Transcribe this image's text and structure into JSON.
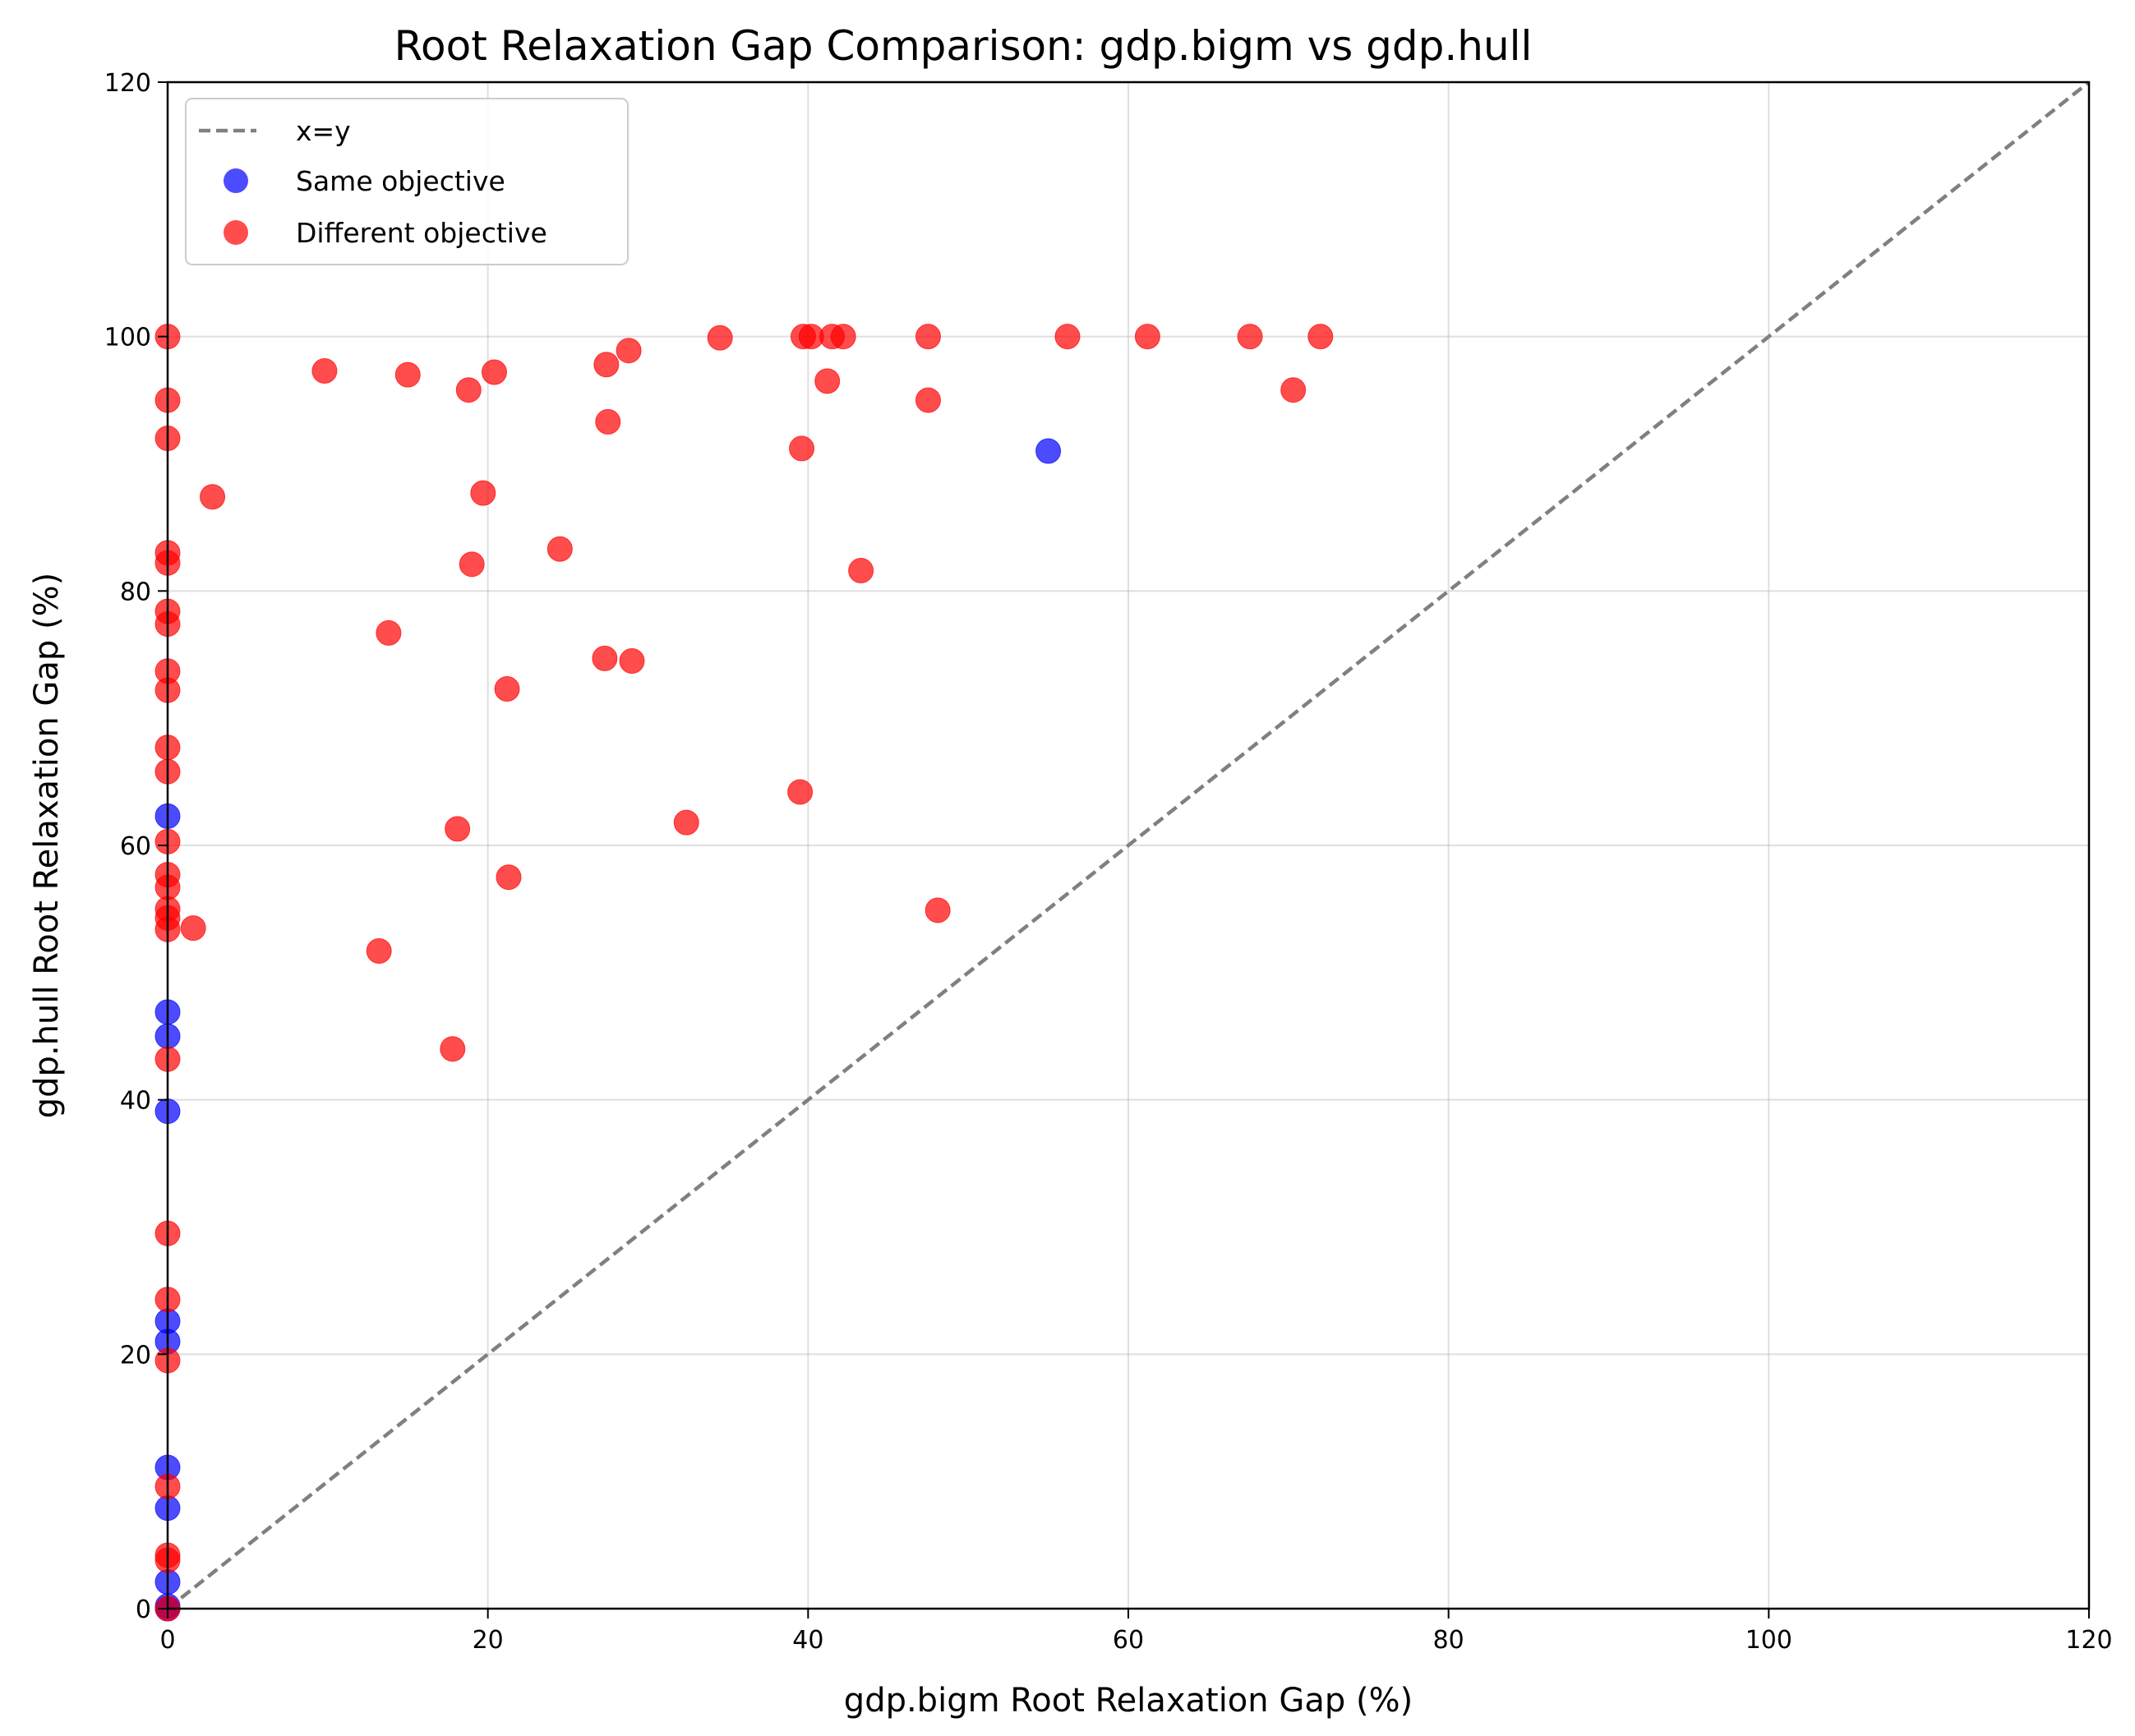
{
  "chart_data": {
    "type": "scatter",
    "title": "Root Relaxation Gap Comparison: gdp.bigm vs gdp.hull",
    "xlabel": "gdp.bigm Root Relaxation Gap (%)",
    "ylabel": "gdp.hull Root Relaxation Gap (%)",
    "xlim": [
      0,
      120
    ],
    "ylim": [
      0,
      120
    ],
    "xticks": [
      0,
      20,
      40,
      60,
      80,
      100,
      120
    ],
    "yticks": [
      0,
      20,
      40,
      60,
      80,
      100,
      120
    ],
    "grid": true,
    "legend_position": "top-left",
    "reference_line": {
      "name": "x=y",
      "style": "dashed",
      "color": "#808080",
      "x": [
        0,
        120
      ],
      "y": [
        0,
        120
      ]
    },
    "series": [
      {
        "name": "Same objective",
        "color": "#0000ff",
        "points": [
          [
            0,
            62.3
          ],
          [
            0,
            46.9
          ],
          [
            0,
            45.0
          ],
          [
            0,
            39.1
          ],
          [
            0,
            22.6
          ],
          [
            0,
            21.0
          ],
          [
            0,
            11.1
          ],
          [
            0,
            7.9
          ],
          [
            0,
            2.1
          ],
          [
            0,
            0.2
          ],
          [
            0,
            0
          ],
          [
            55.0,
            91.0
          ]
        ]
      },
      {
        "name": "Different objective",
        "color": "#ff0000",
        "points": [
          [
            0,
            100
          ],
          [
            0,
            95.0
          ],
          [
            0,
            92.0
          ],
          [
            0,
            83.0
          ],
          [
            0,
            82.2
          ],
          [
            0,
            78.4
          ],
          [
            0,
            77.4
          ],
          [
            0,
            73.7
          ],
          [
            0,
            72.2
          ],
          [
            0,
            67.7
          ],
          [
            0,
            65.8
          ],
          [
            0,
            60.3
          ],
          [
            0,
            57.7
          ],
          [
            0,
            56.7
          ],
          [
            0,
            55.0
          ],
          [
            0,
            54.3
          ],
          [
            0,
            53.4
          ],
          [
            0,
            43.2
          ],
          [
            0,
            29.5
          ],
          [
            0,
            24.3
          ],
          [
            0,
            19.5
          ],
          [
            0,
            9.6
          ],
          [
            0,
            4.2
          ],
          [
            0,
            3.8
          ],
          [
            0,
            0
          ],
          [
            1.6,
            53.5
          ],
          [
            2.8,
            87.4
          ],
          [
            9.8,
            97.3
          ],
          [
            13.2,
            51.7
          ],
          [
            13.8,
            76.7
          ],
          [
            15.0,
            97.0
          ],
          [
            17.8,
            44.0
          ],
          [
            18.1,
            61.3
          ],
          [
            18.8,
            95.8
          ],
          [
            19.0,
            82.1
          ],
          [
            19.7,
            87.7
          ],
          [
            20.4,
            97.2
          ],
          [
            21.2,
            72.3
          ],
          [
            21.3,
            57.5
          ],
          [
            24.5,
            83.3
          ],
          [
            27.3,
            74.7
          ],
          [
            27.4,
            97.8
          ],
          [
            27.5,
            93.3
          ],
          [
            28.8,
            98.9
          ],
          [
            29.0,
            74.5
          ],
          [
            32.4,
            61.8
          ],
          [
            34.5,
            99.9
          ],
          [
            39.5,
            64.2
          ],
          [
            39.6,
            91.2
          ],
          [
            39.7,
            100.0
          ],
          [
            40.2,
            100.0
          ],
          [
            41.2,
            96.5
          ],
          [
            41.5,
            100.0
          ],
          [
            42.2,
            100.0
          ],
          [
            43.3,
            81.6
          ],
          [
            47.5,
            100.0
          ],
          [
            47.5,
            95.0
          ],
          [
            48.1,
            54.9
          ],
          [
            56.2,
            100.0
          ],
          [
            61.2,
            100.0
          ],
          [
            67.6,
            100.0
          ],
          [
            70.3,
            95.8
          ],
          [
            72.0,
            100.0
          ]
        ]
      }
    ]
  }
}
